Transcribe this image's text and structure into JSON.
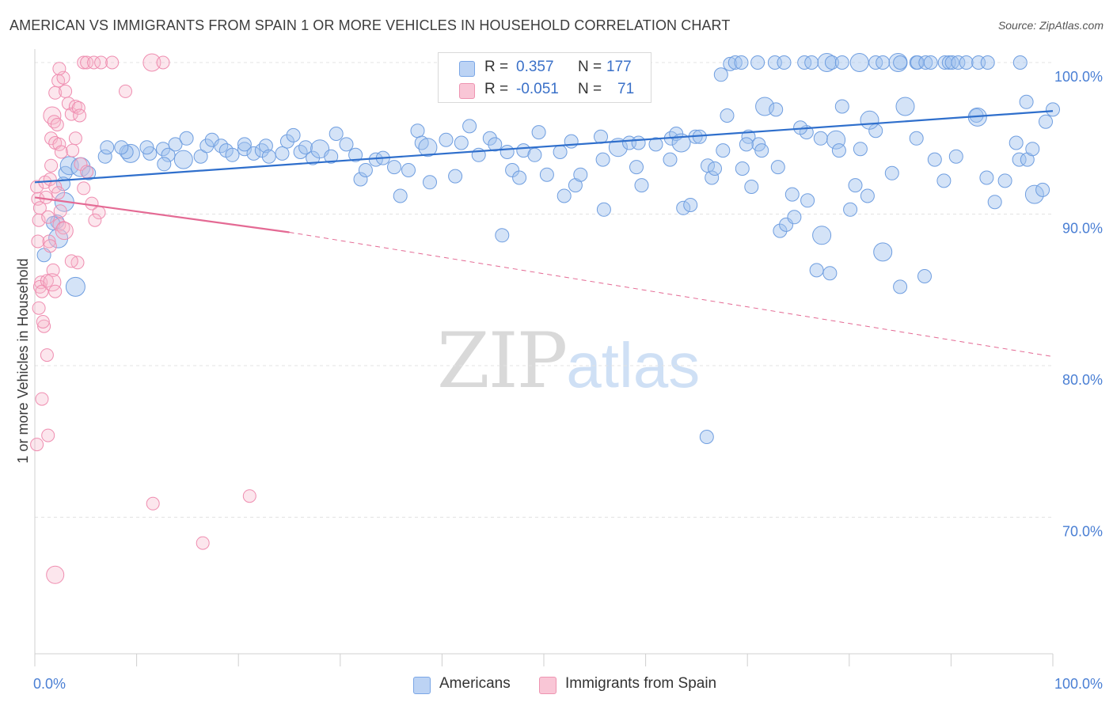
{
  "title": "AMERICAN VS IMMIGRANTS FROM SPAIN 1 OR MORE VEHICLES IN HOUSEHOLD CORRELATION CHART",
  "source": "Source: ZipAtlas.com",
  "watermark": {
    "zip": "ZIP",
    "atlas": "atlas"
  },
  "legend": {
    "r_label": "R =",
    "n_label": "N =",
    "rows": [
      {
        "name": "Americans",
        "r": "0.357",
        "n": "177",
        "fill": "#bcd3f4",
        "stroke": "#7aa6e6"
      },
      {
        "name": "Immigrants from Spain",
        "r": "-0.051",
        "n": "71",
        "fill": "#f9c6d6",
        "stroke": "#ee94b1"
      }
    ]
  },
  "colors": {
    "blue_fill": "rgba(160,192,238,0.45)",
    "blue_stroke": "#6f9ee0",
    "blue_line": "#2f6fcc",
    "pink_fill": "rgba(246,182,204,0.35)",
    "pink_stroke": "#ef8db0",
    "pink_line": "#e46a94",
    "tick_text": "#4a7fd4",
    "grid": "#e3e3e3"
  },
  "chart_data": {
    "type": "scatter",
    "title": "AMERICAN VS IMMIGRANTS FROM SPAIN 1 OR MORE VEHICLES IN HOUSEHOLD CORRELATION CHART",
    "xlabel": "",
    "ylabel": "1 or more Vehicles in Household",
    "xlim": [
      0,
      100
    ],
    "ylim": [
      60.5,
      101.5
    ],
    "x_ticks": [
      "0.0%",
      "100.0%"
    ],
    "y_ticks": [
      {
        "value": 100,
        "label": "100.0%"
      },
      {
        "value": 90,
        "label": "90.0%"
      },
      {
        "value": 80,
        "label": "80.0%"
      },
      {
        "value": 70,
        "label": "70.0%"
      }
    ],
    "grid": true,
    "legend_position": "top-center",
    "series": [
      {
        "name": "Americans",
        "trend": {
          "x": [
            0,
            100
          ],
          "y": [
            92.1,
            96.8
          ]
        },
        "points": [
          [
            0.9,
            87.3
          ],
          [
            2.2,
            89.5
          ],
          [
            1.8,
            89.4
          ],
          [
            2.3,
            88.4
          ],
          [
            4.0,
            85.2
          ],
          [
            3.0,
            92.7
          ],
          [
            3.4,
            93.2
          ],
          [
            2.8,
            92.0
          ],
          [
            2.9,
            90.8
          ],
          [
            4.5,
            93.1
          ],
          [
            5.3,
            92.7
          ],
          [
            6.9,
            93.8
          ],
          [
            7.1,
            94.4
          ],
          [
            9.4,
            94.0
          ],
          [
            9.0,
            94.1
          ],
          [
            8.5,
            94.4
          ],
          [
            11.3,
            94.0
          ],
          [
            11.0,
            94.4
          ],
          [
            12.6,
            94.3
          ],
          [
            13.1,
            93.9
          ],
          [
            13.8,
            94.6
          ],
          [
            14.6,
            93.6
          ],
          [
            12.7,
            93.3
          ],
          [
            14.9,
            95.0
          ],
          [
            16.3,
            93.8
          ],
          [
            16.9,
            94.5
          ],
          [
            17.4,
            94.9
          ],
          [
            18.3,
            94.5
          ],
          [
            18.8,
            94.2
          ],
          [
            19.4,
            93.9
          ],
          [
            20.6,
            94.3
          ],
          [
            21.5,
            94.0
          ],
          [
            20.6,
            94.6
          ],
          [
            22.3,
            94.2
          ],
          [
            22.7,
            94.5
          ],
          [
            23.0,
            93.8
          ],
          [
            24.3,
            94.0
          ],
          [
            24.8,
            94.8
          ],
          [
            25.4,
            95.2
          ],
          [
            26.1,
            94.1
          ],
          [
            26.6,
            94.4
          ],
          [
            27.3,
            93.7
          ],
          [
            28.0,
            94.3
          ],
          [
            29.1,
            93.8
          ],
          [
            29.6,
            95.3
          ],
          [
            30.6,
            94.6
          ],
          [
            31.5,
            93.9
          ],
          [
            32.0,
            92.3
          ],
          [
            32.5,
            92.9
          ],
          [
            33.5,
            93.6
          ],
          [
            34.2,
            93.7
          ],
          [
            35.3,
            93.1
          ],
          [
            35.9,
            91.2
          ],
          [
            36.7,
            92.9
          ],
          [
            37.6,
            95.5
          ],
          [
            38.0,
            94.7
          ],
          [
            38.6,
            94.4
          ],
          [
            38.8,
            92.1
          ],
          [
            40.4,
            94.9
          ],
          [
            41.3,
            92.5
          ],
          [
            41.9,
            94.7
          ],
          [
            42.7,
            95.8
          ],
          [
            43.6,
            93.9
          ],
          [
            44.7,
            95.0
          ],
          [
            45.2,
            94.6
          ],
          [
            45.9,
            88.6
          ],
          [
            46.4,
            94.1
          ],
          [
            46.9,
            92.9
          ],
          [
            47.6,
            92.4
          ],
          [
            48.0,
            94.2
          ],
          [
            49.1,
            93.9
          ],
          [
            49.5,
            95.4
          ],
          [
            50.3,
            92.6
          ],
          [
            51.6,
            94.1
          ],
          [
            52.0,
            91.2
          ],
          [
            52.7,
            94.8
          ],
          [
            53.1,
            91.9
          ],
          [
            53.6,
            92.6
          ],
          [
            55.6,
            95.1
          ],
          [
            55.8,
            93.6
          ],
          [
            55.9,
            90.3
          ],
          [
            57.3,
            94.4
          ],
          [
            58.4,
            94.7
          ],
          [
            59.1,
            93.1
          ],
          [
            59.3,
            94.7
          ],
          [
            59.6,
            91.9
          ],
          [
            61.0,
            94.6
          ],
          [
            62.4,
            93.6
          ],
          [
            62.5,
            95.0
          ],
          [
            63.0,
            95.3
          ],
          [
            63.5,
            94.7
          ],
          [
            63.7,
            90.4
          ],
          [
            64.4,
            90.6
          ],
          [
            64.9,
            95.1
          ],
          [
            65.3,
            95.1
          ],
          [
            66.1,
            93.2
          ],
          [
            66.5,
            92.4
          ],
          [
            66.8,
            93.0
          ],
          [
            67.6,
            94.2
          ],
          [
            68.3,
            99.9
          ],
          [
            69.5,
            93.0
          ],
          [
            70.1,
            95.1
          ],
          [
            71.1,
            94.6
          ],
          [
            71.4,
            94.2
          ],
          [
            71.7,
            97.1
          ],
          [
            72.8,
            96.9
          ],
          [
            73.2,
            88.9
          ],
          [
            73.8,
            89.3
          ],
          [
            74.4,
            91.3
          ],
          [
            75.8,
            95.4
          ],
          [
            75.9,
            90.9
          ],
          [
            76.8,
            86.3
          ],
          [
            77.2,
            95.0
          ],
          [
            77.3,
            88.6
          ],
          [
            78.1,
            86.1
          ],
          [
            78.7,
            94.9
          ],
          [
            79.3,
            97.1
          ],
          [
            80.1,
            90.3
          ],
          [
            81.1,
            94.3
          ],
          [
            81.8,
            91.2
          ],
          [
            82.6,
            95.5
          ],
          [
            83.3,
            87.5
          ],
          [
            84.2,
            92.7
          ],
          [
            85.0,
            85.2
          ],
          [
            85.5,
            97.1
          ],
          [
            86.6,
            95.0
          ],
          [
            87.4,
            85.9
          ],
          [
            88.4,
            93.6
          ],
          [
            89.3,
            92.2
          ],
          [
            90.5,
            93.8
          ],
          [
            92.5,
            96.5
          ],
          [
            92.6,
            96.4
          ],
          [
            93.5,
            92.4
          ],
          [
            94.3,
            90.8
          ],
          [
            95.3,
            92.2
          ],
          [
            96.4,
            94.7
          ],
          [
            96.7,
            93.6
          ],
          [
            97.4,
            97.4
          ],
          [
            98.2,
            91.3
          ],
          [
            99.3,
            96.1
          ],
          [
            100.0,
            96.9
          ],
          [
            68.8,
            100.0
          ],
          [
            69.4,
            100.0
          ],
          [
            71.0,
            100.0
          ],
          [
            72.7,
            100.0
          ],
          [
            73.6,
            100.0
          ],
          [
            75.6,
            100.0
          ],
          [
            76.3,
            100.0
          ],
          [
            77.8,
            100.0
          ],
          [
            78.3,
            100.0
          ],
          [
            79.3,
            100.0
          ],
          [
            81.0,
            100.0
          ],
          [
            82.6,
            100.0
          ],
          [
            83.3,
            100.0
          ],
          [
            84.8,
            100.0
          ],
          [
            85.0,
            100.0
          ],
          [
            86.6,
            100.0
          ],
          [
            86.7,
            100.0
          ],
          [
            87.5,
            100.0
          ],
          [
            88.0,
            100.0
          ],
          [
            89.4,
            100.0
          ],
          [
            89.8,
            100.0
          ],
          [
            90.1,
            100.0
          ],
          [
            90.7,
            100.0
          ],
          [
            91.5,
            100.0
          ],
          [
            92.7,
            100.0
          ],
          [
            93.6,
            100.0
          ],
          [
            96.8,
            100.0
          ],
          [
            97.5,
            93.6
          ],
          [
            66.0,
            75.3
          ],
          [
            98.0,
            94.3
          ],
          [
            99.0,
            91.6
          ],
          [
            67.4,
            99.2
          ],
          [
            68.0,
            96.5
          ],
          [
            69.9,
            94.6
          ],
          [
            70.4,
            91.8
          ],
          [
            73.0,
            93.1
          ],
          [
            74.6,
            89.8
          ],
          [
            75.2,
            95.7
          ],
          [
            79.0,
            94.2
          ],
          [
            80.6,
            91.9
          ],
          [
            82.0,
            96.2
          ]
        ]
      },
      {
        "name": "Immigrants from Spain",
        "trend": {
          "x": [
            0,
            25
          ],
          "y": [
            91.1,
            88.8
          ]
        },
        "trend_dashed": {
          "x": [
            25,
            100
          ],
          "y": [
            88.8,
            80.6
          ]
        },
        "points": [
          [
            0.2,
            91.8
          ],
          [
            0.3,
            91.0
          ],
          [
            0.5,
            90.4
          ],
          [
            0.4,
            89.6
          ],
          [
            0.3,
            88.2
          ],
          [
            0.6,
            85.5
          ],
          [
            0.5,
            85.2
          ],
          [
            0.7,
            84.9
          ],
          [
            0.4,
            83.8
          ],
          [
            0.9,
            82.6
          ],
          [
            0.8,
            82.9
          ],
          [
            1.2,
            80.7
          ],
          [
            0.7,
            77.8
          ],
          [
            1.3,
            75.4
          ],
          [
            0.2,
            74.8
          ],
          [
            1.0,
            92.1
          ],
          [
            1.1,
            91.1
          ],
          [
            1.3,
            89.8
          ],
          [
            1.4,
            88.2
          ],
          [
            1.5,
            87.9
          ],
          [
            1.8,
            86.3
          ],
          [
            1.2,
            85.6
          ],
          [
            1.7,
            85.5
          ],
          [
            2.0,
            84.9
          ],
          [
            1.6,
            93.2
          ],
          [
            1.5,
            92.3
          ],
          [
            2.0,
            91.8
          ],
          [
            2.3,
            91.4
          ],
          [
            2.5,
            90.2
          ],
          [
            2.4,
            89.3
          ],
          [
            2.8,
            89.1
          ],
          [
            2.9,
            88.9
          ],
          [
            1.7,
            96.5
          ],
          [
            1.9,
            96.1
          ],
          [
            2.2,
            95.9
          ],
          [
            1.6,
            95.0
          ],
          [
            2.0,
            94.7
          ],
          [
            2.4,
            94.6
          ],
          [
            2.6,
            94.1
          ],
          [
            2.0,
            98.0
          ],
          [
            2.3,
            98.8
          ],
          [
            2.8,
            99.0
          ],
          [
            3.0,
            98.1
          ],
          [
            3.3,
            97.3
          ],
          [
            3.6,
            96.6
          ],
          [
            4.0,
            97.1
          ],
          [
            4.3,
            97.0
          ],
          [
            4.4,
            96.5
          ],
          [
            4.0,
            95.0
          ],
          [
            3.7,
            94.2
          ],
          [
            4.5,
            93.3
          ],
          [
            5.1,
            92.8
          ],
          [
            4.8,
            91.7
          ],
          [
            5.6,
            90.7
          ],
          [
            6.3,
            90.1
          ],
          [
            5.9,
            89.6
          ],
          [
            4.2,
            86.8
          ],
          [
            3.6,
            86.9
          ],
          [
            4.8,
            100.0
          ],
          [
            5.1,
            100.0
          ],
          [
            5.8,
            100.0
          ],
          [
            6.5,
            100.0
          ],
          [
            7.6,
            100.0
          ],
          [
            11.5,
            100.0
          ],
          [
            12.6,
            100.0
          ],
          [
            8.9,
            98.1
          ],
          [
            11.6,
            70.9
          ],
          [
            21.1,
            71.4
          ],
          [
            16.5,
            68.3
          ],
          [
            2.0,
            66.2
          ],
          [
            2.4,
            99.6
          ]
        ]
      }
    ]
  },
  "axis": {
    "x_left": "0.0%",
    "x_right": "100.0%",
    "y_label": "1 or more Vehicles in Household"
  }
}
